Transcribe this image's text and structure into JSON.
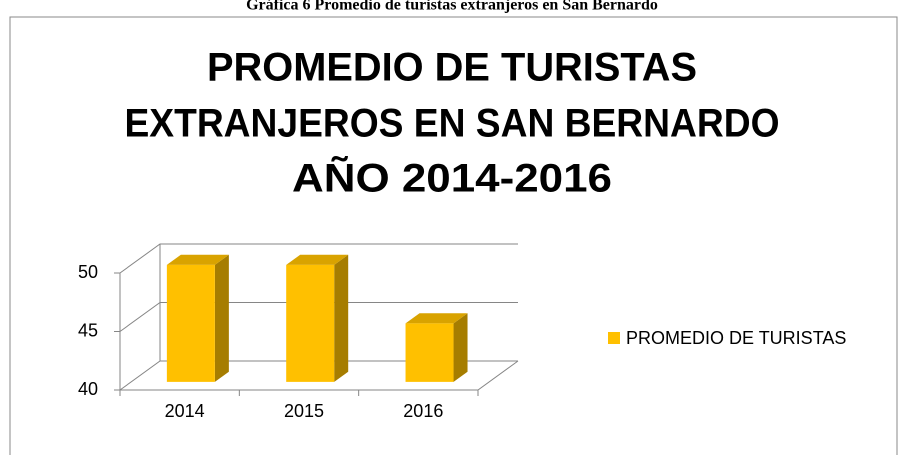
{
  "caption": "Gráfica 6 Promedio de turistas extranjeros en San Bernardo",
  "chart_data": {
    "type": "bar3d",
    "title": [
      "PROMEDIO DE TURISTAS",
      "EXTRANJEROS EN SAN BERNARDO",
      "AÑO 2014-2016"
    ],
    "categories": [
      "2014",
      "2015",
      "2016"
    ],
    "series": [
      {
        "name": "PROMEDIO DE TURISTAS",
        "color": "#ffc000",
        "values": [
          50,
          50,
          45
        ]
      }
    ],
    "ylim": [
      40,
      50
    ],
    "yticks": [
      40,
      45,
      50
    ],
    "grid": true,
    "legend": "right"
  }
}
